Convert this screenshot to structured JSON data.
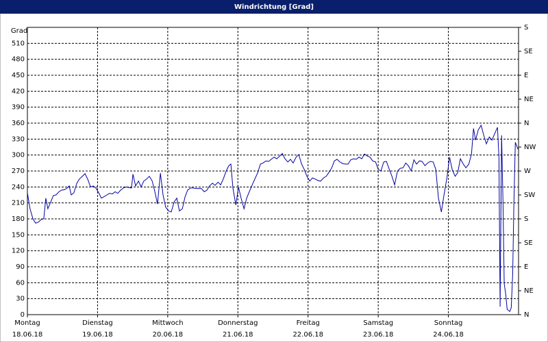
{
  "chart_data": {
    "type": "line",
    "title": "Windrichtung [Grad]",
    "ylabel": "Grad",
    "x": [
      0,
      0.9,
      1.9,
      2.8,
      3.8,
      4.7,
      5.6,
      6.3,
      7.0,
      8.0,
      8.9,
      9.8,
      10.8,
      11.7,
      12.7,
      13.6,
      14.3,
      15.0,
      15.9,
      16.9,
      17.8,
      18.8,
      19.7,
      20.6,
      21.6,
      22.5,
      23.4,
      24.4,
      25.3,
      26.3,
      27.2,
      28.1,
      29.1,
      30.0,
      30.9,
      31.9,
      32.8,
      33.8,
      34.7,
      35.6,
      36.1,
      37.0,
      38.0,
      38.9,
      39.8,
      40.8,
      41.7,
      42.7,
      43.6,
      44.5,
      45.5,
      46.4,
      47.3,
      48.3,
      49.2,
      50.2,
      51.1,
      52.0,
      53.0,
      53.9,
      54.8,
      55.8,
      56.7,
      57.7,
      58.6,
      59.5,
      60.5,
      61.4,
      62.3,
      63.3,
      64.2,
      65.2,
      66.1,
      67.0,
      68.0,
      68.9,
      69.6,
      70.3,
      71.3,
      72.2,
      73.1,
      74.1,
      75.0,
      75.9,
      76.9,
      77.8,
      78.8,
      79.7,
      80.6,
      81.6,
      82.5,
      83.4,
      84.4,
      85.3,
      86.3,
      87.2,
      88.1,
      89.1,
      90.0,
      90.9,
      91.9,
      92.8,
      93.8,
      94.7,
      95.6,
      96.6,
      97.5,
      98.4,
      99.4,
      100.3,
      101.3,
      102.2,
      103.1,
      104.1,
      105.0,
      105.9,
      106.9,
      107.8,
      108.8,
      109.7,
      110.6,
      111.6,
      112.5,
      113.4,
      114.4,
      115.3,
      116.3,
      117.2,
      118.1,
      119.1,
      120.0,
      120.9,
      121.9,
      122.8,
      123.8,
      124.7,
      125.6,
      126.6,
      127.5,
      128.5,
      129.4,
      130.3,
      131.3,
      132.2,
      133.1,
      134.1,
      135.0,
      136.0,
      136.9,
      137.8,
      138.8,
      139.7,
      140.6,
      141.6,
      142.5,
      143.5,
      144.4,
      145.3,
      146.3,
      147.2,
      148.1,
      149.1,
      150.0,
      151.0,
      151.9,
      152.6,
      153.3,
      154.2,
      155.2,
      156.1,
      157.0,
      158.0,
      158.9,
      159.9,
      160.8,
      161.3,
      161.7,
      162.2,
      162.7,
      163.1,
      163.6,
      164.1,
      165.0,
      165.5,
      166.0,
      166.4,
      166.9,
      167.8
    ],
    "series": [
      {
        "color": "#0000a0",
        "values": [
          229,
          199,
          180,
          172,
          174,
          179,
          180,
          219,
          199,
          212,
          224,
          225,
          231,
          234,
          235,
          238,
          242,
          225,
          229,
          247,
          255,
          260,
          265,
          255,
          240,
          242,
          238,
          229,
          219,
          222,
          225,
          228,
          227,
          231,
          228,
          234,
          238,
          240,
          239,
          238,
          264,
          242,
          251,
          240,
          251,
          255,
          260,
          251,
          231,
          208,
          266,
          225,
          202,
          195,
          193,
          212,
          219,
          195,
          199,
          221,
          234,
          238,
          238,
          237,
          237,
          237,
          231,
          234,
          242,
          247,
          243,
          249,
          244,
          255,
          270,
          280,
          283,
          238,
          206,
          240,
          219,
          199,
          219,
          231,
          244,
          255,
          267,
          283,
          285,
          289,
          288,
          292,
          296,
          293,
          298,
          303,
          293,
          287,
          292,
          285,
          296,
          301,
          283,
          273,
          260,
          251,
          257,
          255,
          252,
          251,
          257,
          260,
          267,
          276,
          289,
          292,
          287,
          284,
          283,
          283,
          291,
          293,
          292,
          296,
          293,
          302,
          298,
          296,
          289,
          287,
          273,
          270,
          287,
          288,
          273,
          260,
          244,
          270,
          275,
          276,
          285,
          280,
          270,
          291,
          283,
          289,
          288,
          280,
          285,
          288,
          287,
          273,
          219,
          193,
          225,
          257,
          296,
          273,
          260,
          267,
          293,
          283,
          276,
          283,
          302,
          350,
          328,
          347,
          356,
          337,
          321,
          334,
          328,
          341,
          352,
          296,
          15,
          337,
          206,
          58,
          39,
          10,
          6,
          13,
          77,
          206,
          324,
          311
        ]
      }
    ],
    "xlim": [
      0,
      168
    ],
    "xticks": [
      {
        "value": 0,
        "label": "Montag",
        "date": "18.06.18"
      },
      {
        "value": 24,
        "label": "Dienstag",
        "date": "19.06.18"
      },
      {
        "value": 48,
        "label": "Mittwoch",
        "date": "20.06.18"
      },
      {
        "value": 72,
        "label": "Donnerstag",
        "date": "21.06.18"
      },
      {
        "value": 96,
        "label": "Freitag",
        "date": "22.06.18"
      },
      {
        "value": 120,
        "label": "Samstag",
        "date": "23.06.18"
      },
      {
        "value": 144,
        "label": "Sonntag",
        "date": "24.06.18"
      }
    ],
    "ylim": [
      0,
      540
    ],
    "yticks": [
      0,
      30,
      60,
      90,
      120,
      150,
      180,
      210,
      240,
      270,
      300,
      330,
      360,
      390,
      420,
      450,
      480,
      510
    ],
    "y2lim": [
      0,
      540
    ],
    "y2ticks": [
      {
        "value": 0,
        "label": "N"
      },
      {
        "value": 45,
        "label": "NE"
      },
      {
        "value": 90,
        "label": "E"
      },
      {
        "value": 135,
        "label": "SE"
      },
      {
        "value": 180,
        "label": "S"
      },
      {
        "value": 225,
        "label": "SW"
      },
      {
        "value": 270,
        "label": "W"
      },
      {
        "value": 315,
        "label": "NW"
      },
      {
        "value": 360,
        "label": "N"
      },
      {
        "value": 405,
        "label": "NE"
      },
      {
        "value": 450,
        "label": "E"
      },
      {
        "value": 495,
        "label": "SE"
      },
      {
        "value": 540,
        "label": "S"
      }
    ],
    "grid": true
  }
}
